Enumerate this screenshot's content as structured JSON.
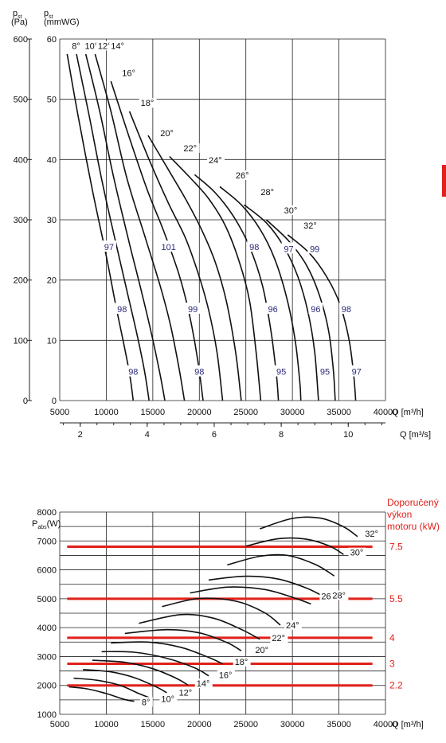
{
  "chart_data": [
    {
      "type": "line",
      "xlabel": "Q [m³/h]",
      "xlabel2": "Q [m³/s]",
      "ylabel_pa": "p",
      "ylabel_pa_sub": "st",
      "ylabel_pa_unit": "(Pa)",
      "ylabel_mm": "p",
      "ylabel_mm_sub": "st",
      "ylabel_mm_unit": "(mmWG)",
      "xlim": [
        5000,
        40000
      ],
      "ylim": [
        0,
        600
      ],
      "x_ticks": [
        "5000",
        "10000",
        "15000",
        "20000",
        "25000",
        "30000",
        "35000",
        "40000"
      ],
      "x2_ticks": [
        "2",
        "4",
        "6",
        "8",
        "10"
      ],
      "y_pa_ticks": [
        "0",
        "100",
        "200",
        "300",
        "400",
        "500",
        "600"
      ],
      "y_mm_ticks": [
        "0",
        "10",
        "20",
        "30",
        "40",
        "50",
        "60"
      ],
      "series": [
        {
          "name": "8°",
          "points": [
            [
              5800,
              575
            ],
            [
              7000,
              470
            ],
            [
              8500,
              350
            ],
            [
              10000,
              240
            ],
            [
              11000,
              160
            ],
            [
              11800,
              100
            ],
            [
              12500,
              45
            ],
            [
              12900,
              0
            ]
          ]
        },
        {
          "name": "10°",
          "points": [
            [
              6800,
              575
            ],
            [
              8200,
              470
            ],
            [
              9600,
              360
            ],
            [
              11200,
              250
            ],
            [
              12400,
              170
            ],
            [
              13300,
              110
            ],
            [
              14100,
              50
            ],
            [
              14600,
              0
            ]
          ]
        },
        {
          "name": "12°",
          "points": [
            [
              7800,
              575
            ],
            [
              9300,
              480
            ],
            [
              10800,
              370
            ],
            [
              12500,
              260
            ],
            [
              13800,
              180
            ],
            [
              14800,
              115
            ],
            [
              15700,
              50
            ],
            [
              16300,
              0
            ]
          ]
        },
        {
          "name": "14°",
          "points": [
            [
              8800,
              575
            ],
            [
              10500,
              480
            ],
            [
              12200,
              370
            ],
            [
              14200,
              270
            ],
            [
              15800,
              190
            ],
            [
              16900,
              125
            ],
            [
              17800,
              55
            ],
            [
              18400,
              0
            ]
          ]
        },
        {
          "name": "16°",
          "points": [
            [
              10500,
              530
            ],
            [
              12400,
              440
            ],
            [
              14400,
              350
            ],
            [
              16200,
              280
            ],
            [
              17800,
              210
            ],
            [
              18900,
              145
            ],
            [
              19800,
              70
            ],
            [
              20400,
              0
            ]
          ]
        },
        {
          "name": "18°",
          "points": [
            [
              12500,
              480
            ],
            [
              14600,
              400
            ],
            [
              16600,
              330
            ],
            [
              18500,
              270
            ],
            [
              19900,
              210
            ],
            [
              21000,
              150
            ],
            [
              21900,
              80
            ],
            [
              22500,
              0
            ]
          ]
        },
        {
          "name": "20°",
          "points": [
            [
              14500,
              440
            ],
            [
              16600,
              385
            ],
            [
              18500,
              335
            ],
            [
              20200,
              285
            ],
            [
              21700,
              230
            ],
            [
              22900,
              165
            ],
            [
              23900,
              80
            ],
            [
              24500,
              0
            ]
          ]
        },
        {
          "name": "22°",
          "points": [
            [
              16800,
              405
            ],
            [
              19000,
              370
            ],
            [
              21000,
              335
            ],
            [
              22800,
              290
            ],
            [
              24300,
              230
            ],
            [
              25400,
              165
            ],
            [
              26100,
              80
            ],
            [
              26600,
              0
            ]
          ]
        },
        {
          "name": "24°",
          "points": [
            [
              19500,
              375
            ],
            [
              21700,
              345
            ],
            [
              23700,
              305
            ],
            [
              25400,
              255
            ],
            [
              26800,
              190
            ],
            [
              27700,
              115
            ],
            [
              28300,
              40
            ],
            [
              28500,
              0
            ]
          ]
        },
        {
          "name": "26°",
          "points": [
            [
              22200,
              355
            ],
            [
              24500,
              325
            ],
            [
              26500,
              285
            ],
            [
              28100,
              235
            ],
            [
              29400,
              170
            ],
            [
              30300,
              100
            ],
            [
              30800,
              30
            ],
            [
              30900,
              0
            ]
          ]
        },
        {
          "name": "28°",
          "points": [
            [
              24800,
              325
            ],
            [
              27200,
              295
            ],
            [
              29100,
              255
            ],
            [
              30600,
              205
            ],
            [
              31700,
              145
            ],
            [
              32400,
              80
            ],
            [
              32800,
              0
            ]
          ]
        },
        {
          "name": "30°",
          "points": [
            [
              27200,
              300
            ],
            [
              29600,
              265
            ],
            [
              31500,
              225
            ],
            [
              32900,
              175
            ],
            [
              33900,
              115
            ],
            [
              34400,
              50
            ],
            [
              34600,
              0
            ]
          ]
        },
        {
          "name": "32°",
          "points": [
            [
              29500,
              275
            ],
            [
              31800,
              245
            ],
            [
              33700,
              205
            ],
            [
              35100,
              160
            ],
            [
              36100,
              100
            ],
            [
              36600,
              40
            ],
            [
              36800,
              0
            ]
          ]
        }
      ],
      "efficiency_labels": [
        {
          "text": "97",
          "x": 10300,
          "y": 255
        },
        {
          "text": "98",
          "x": 11700,
          "y": 152
        },
        {
          "text": "98",
          "x": 12900,
          "y": 48
        },
        {
          "text": "101",
          "x": 16700,
          "y": 255
        },
        {
          "text": "99",
          "x": 19300,
          "y": 152
        },
        {
          "text": "98",
          "x": 20000,
          "y": 48
        },
        {
          "text": "98",
          "x": 25900,
          "y": 255
        },
        {
          "text": "96",
          "x": 27900,
          "y": 152
        },
        {
          "text": "95",
          "x": 28800,
          "y": 48
        },
        {
          "text": "97",
          "x": 29600,
          "y": 252
        },
        {
          "text": "99",
          "x": 32400,
          "y": 252
        },
        {
          "text": "96",
          "x": 32500,
          "y": 152
        },
        {
          "text": "95",
          "x": 33500,
          "y": 48
        },
        {
          "text": "98",
          "x": 35800,
          "y": 152
        },
        {
          "text": "97",
          "x": 36900,
          "y": 48
        }
      ]
    },
    {
      "type": "line",
      "xlabel": "Q [m³/h]",
      "ylabel": "P",
      "ylabel_sub": "abs",
      "ylabel_unit": "(W)",
      "xlim": [
        5000,
        40000
      ],
      "ylim": [
        1000,
        8000
      ],
      "x_ticks": [
        "5000",
        "10000",
        "15000",
        "20000",
        "25000",
        "30000",
        "35000",
        "40000"
      ],
      "y_ticks": [
        "1000",
        "2000",
        "3000",
        "4000",
        "5000",
        "6000",
        "7000",
        "8000"
      ],
      "right_title": [
        "Doporučený",
        "výkon",
        "motoru (kW)"
      ],
      "motor_levels": [
        {
          "label": "7.5",
          "value": 6800
        },
        {
          "label": "5.5",
          "value": 5000
        },
        {
          "label": "4",
          "value": 3650
        },
        {
          "label": "3",
          "value": 2750
        },
        {
          "label": "2.2",
          "value": 2000
        }
      ],
      "series": [
        {
          "name": "8°",
          "points": [
            [
              6000,
              1950
            ],
            [
              8000,
              1880
            ],
            [
              10000,
              1720
            ],
            [
              11800,
              1530
            ],
            [
              13000,
              1450
            ]
          ]
        },
        {
          "name": "10°",
          "points": [
            [
              6500,
              2250
            ],
            [
              9000,
              2180
            ],
            [
              11500,
              2000
            ],
            [
              13500,
              1720
            ],
            [
              15000,
              1530
            ]
          ]
        },
        {
          "name": "12°",
          "points": [
            [
              7500,
              2550
            ],
            [
              10500,
              2470
            ],
            [
              13000,
              2270
            ],
            [
              15300,
              1960
            ],
            [
              16500,
              1750
            ]
          ]
        },
        {
          "name": "14°",
          "points": [
            [
              8500,
              2870
            ],
            [
              12000,
              2800
            ],
            [
              15000,
              2580
            ],
            [
              17500,
              2250
            ],
            [
              18800,
              2010
            ]
          ]
        },
        {
          "name": "16°",
          "points": [
            [
              9500,
              3170
            ],
            [
              13000,
              3150
            ],
            [
              16500,
              2940
            ],
            [
              19500,
              2610
            ],
            [
              21000,
              2330
            ]
          ]
        },
        {
          "name": "18°",
          "points": [
            [
              10500,
              3470
            ],
            [
              14500,
              3500
            ],
            [
              18000,
              3320
            ],
            [
              21000,
              2970
            ],
            [
              22500,
              2750
            ]
          ]
        },
        {
          "name": "20°",
          "points": [
            [
              12000,
              3800
            ],
            [
              16500,
              3930
            ],
            [
              20000,
              3820
            ],
            [
              23000,
              3480
            ],
            [
              24500,
              3200
            ]
          ]
        },
        {
          "name": "22°",
          "points": [
            [
              13500,
              4150
            ],
            [
              18000,
              4450
            ],
            [
              21500,
              4330
            ],
            [
              24500,
              3940
            ],
            [
              26500,
              3600
            ]
          ]
        },
        {
          "name": "24°",
          "points": [
            [
              16000,
              4730
            ],
            [
              20000,
              5010
            ],
            [
              24000,
              4910
            ],
            [
              27000,
              4520
            ],
            [
              28700,
              4090
            ]
          ]
        },
        {
          "name": "26°",
          "points": [
            [
              19000,
              5200
            ],
            [
              23000,
              5400
            ],
            [
              27000,
              5320
            ],
            [
              30000,
              5050
            ],
            [
              32000,
              4820
            ]
          ]
        },
        {
          "name": "28°",
          "points": [
            [
              21000,
              5650
            ],
            [
              25000,
              5780
            ],
            [
              28500,
              5680
            ],
            [
              31500,
              5370
            ],
            [
              33500,
              5050
            ]
          ]
        },
        {
          "name": "30°",
          "points": [
            [
              23000,
              6170
            ],
            [
              26500,
              6470
            ],
            [
              29500,
              6500
            ],
            [
              32500,
              6180
            ],
            [
              34500,
              5790
            ]
          ]
        },
        {
          "name": "30°b",
          "points": [
            [
              25000,
              6820
            ],
            [
              28500,
              7080
            ],
            [
              31500,
              7060
            ],
            [
              34000,
              6820
            ],
            [
              35500,
              6530
            ]
          ]
        },
        {
          "name": "32°",
          "points": [
            [
              26500,
              7420
            ],
            [
              30000,
              7780
            ],
            [
              33000,
              7790
            ],
            [
              35500,
              7490
            ],
            [
              37000,
              7150
            ]
          ]
        }
      ]
    }
  ],
  "top_angle_labels": [
    {
      "text": "8°",
      "x": 6300,
      "y": 585
    },
    {
      "text": "10°",
      "x": 7700,
      "y": 585
    },
    {
      "text": "12°",
      "x": 9100,
      "y": 585
    },
    {
      "text": "14°",
      "x": 10500,
      "y": 585
    },
    {
      "text": "16°",
      "x": 11700,
      "y": 540
    },
    {
      "text": "18°",
      "x": 13700,
      "y": 490
    },
    {
      "text": "20°",
      "x": 15800,
      "y": 440
    },
    {
      "text": "22°",
      "x": 18300,
      "y": 415
    },
    {
      "text": "24°",
      "x": 21000,
      "y": 395
    },
    {
      "text": "26°",
      "x": 23900,
      "y": 370
    },
    {
      "text": "28°",
      "x": 26600,
      "y": 342
    },
    {
      "text": "30°",
      "x": 29100,
      "y": 312
    },
    {
      "text": "32°",
      "x": 31200,
      "y": 287
    }
  ],
  "bottom_angle_labels": [
    {
      "text": "8°",
      "x": 13800,
      "y": 1350
    },
    {
      "text": "10°",
      "x": 15900,
      "y": 1450
    },
    {
      "text": "12°",
      "x": 17800,
      "y": 1680
    },
    {
      "text": "14°",
      "x": 19700,
      "y": 1990
    },
    {
      "text": "16°",
      "x": 22100,
      "y": 2280
    },
    {
      "text": "18°",
      "x": 23800,
      "y": 2740
    },
    {
      "text": "20°",
      "x": 26000,
      "y": 3150
    },
    {
      "text": "22°",
      "x": 27800,
      "y": 3560
    },
    {
      "text": "24°",
      "x": 29300,
      "y": 4010
    },
    {
      "text": "26°",
      "x": 33100,
      "y": 5010
    },
    {
      "text": "28°",
      "x": 34300,
      "y": 5040
    },
    {
      "text": "30°",
      "x": 36200,
      "y": 6520
    },
    {
      "text": "32°",
      "x": 37800,
      "y": 7170
    }
  ]
}
